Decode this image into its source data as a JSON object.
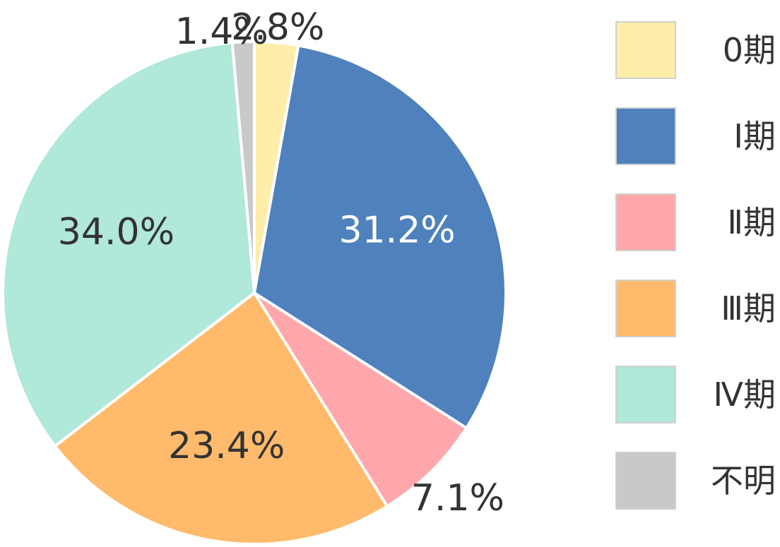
{
  "chart_data": {
    "type": "pie",
    "title": "",
    "slices": [
      {
        "label": "0期",
        "value": 2.8,
        "value_label": "2.8%",
        "color": "#FFEDAA",
        "label_color": "#333333"
      },
      {
        "label": "Ⅰ期",
        "value": 31.2,
        "value_label": "31.2%",
        "color": "#4F81BD",
        "label_color": "#FFFFFF"
      },
      {
        "label": "Ⅱ期",
        "value": 7.1,
        "value_label": "7.1%",
        "color": "#FFA7AA",
        "label_color": "#333333"
      },
      {
        "label": "Ⅲ期",
        "value": 23.4,
        "value_label": "23.4%",
        "color": "#FFBB6B",
        "label_color": "#333333"
      },
      {
        "label": "Ⅳ期",
        "value": 34.0,
        "value_label": "34.0%",
        "color": "#B0E8DA",
        "label_color": "#333333"
      },
      {
        "label": "不明",
        "value": 1.4,
        "value_label": "1.4%",
        "color": "#C9C9C9",
        "label_color": "#333333"
      }
    ],
    "start": "12 o'clock",
    "direction": "clockwise",
    "legend_position": "right"
  }
}
